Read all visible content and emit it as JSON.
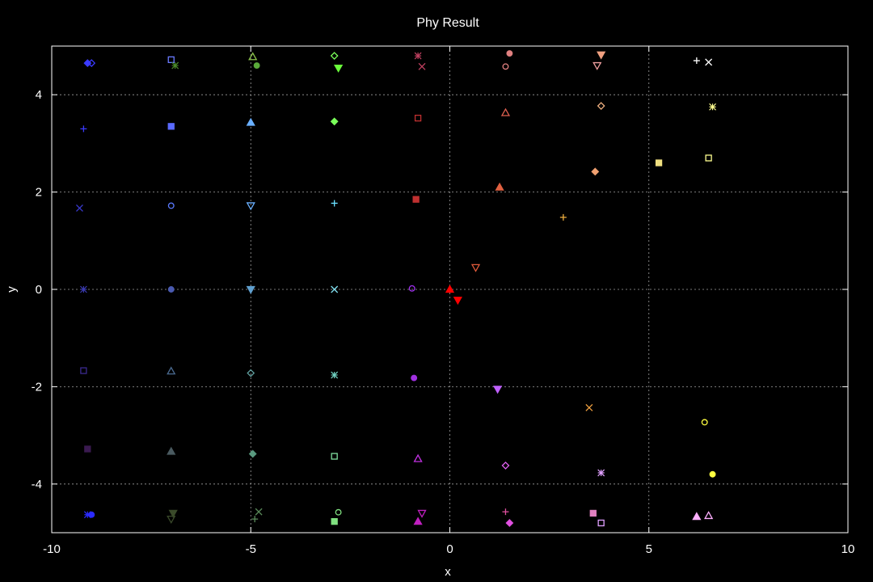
{
  "chart_data": {
    "type": "scatter",
    "title": "Phy Result",
    "xlabel": "x",
    "ylabel": "y",
    "xlim": [
      -10,
      10
    ],
    "ylim": [
      -5,
      5
    ],
    "xticks": [
      -10,
      -5,
      0,
      5,
      10
    ],
    "yticks": [
      -4,
      -2,
      0,
      2,
      4
    ],
    "grid": true,
    "background": "#000000",
    "axis_color": "#ffffff",
    "grid_color": "#a0a0a0",
    "points": [
      {
        "x": -9.0,
        "y": 4.65,
        "marker": "diamond-open",
        "color": "#3a3aff"
      },
      {
        "x": -9.1,
        "y": 4.65,
        "marker": "diamond-filled",
        "color": "#3a3aff"
      },
      {
        "x": -7.0,
        "y": 4.72,
        "marker": "square-open",
        "color": "#6a7aff"
      },
      {
        "x": -6.9,
        "y": 4.6,
        "marker": "asterisk",
        "color": "#4a8a2a"
      },
      {
        "x": -4.95,
        "y": 4.78,
        "marker": "triangle-open",
        "color": "#8ac04a"
      },
      {
        "x": -4.85,
        "y": 4.6,
        "marker": "circle-filled",
        "color": "#5aaa3a"
      },
      {
        "x": -2.9,
        "y": 4.8,
        "marker": "diamond-open",
        "color": "#7aff5a"
      },
      {
        "x": -2.8,
        "y": 4.55,
        "marker": "tri-down-filled",
        "color": "#6aff3a"
      },
      {
        "x": -0.8,
        "y": 4.8,
        "marker": "asterisk",
        "color": "#c04060"
      },
      {
        "x": -0.7,
        "y": 4.58,
        "marker": "cross",
        "color": "#c04060"
      },
      {
        "x": 1.5,
        "y": 4.85,
        "marker": "circle-filled",
        "color": "#e08080"
      },
      {
        "x": 1.4,
        "y": 4.58,
        "marker": "circle-open",
        "color": "#e08080"
      },
      {
        "x": 3.8,
        "y": 4.82,
        "marker": "tri-down-filled",
        "color": "#f0a080"
      },
      {
        "x": 3.7,
        "y": 4.6,
        "marker": "tri-down-open",
        "color": "#f0a0a0"
      },
      {
        "x": 6.2,
        "y": 4.7,
        "marker": "plus",
        "color": "#ffffff"
      },
      {
        "x": 6.5,
        "y": 4.67,
        "marker": "cross",
        "color": "#ffffff"
      },
      {
        "x": -9.2,
        "y": 3.3,
        "marker": "plus",
        "color": "#3a3aff"
      },
      {
        "x": -7.0,
        "y": 3.35,
        "marker": "square-filled",
        "color": "#5a6aff"
      },
      {
        "x": -5.0,
        "y": 3.43,
        "marker": "triangle-filled",
        "color": "#6ab0ff"
      },
      {
        "x": -2.9,
        "y": 3.45,
        "marker": "diamond-filled",
        "color": "#7aff5a"
      },
      {
        "x": -0.8,
        "y": 3.52,
        "marker": "square-open",
        "color": "#c03030"
      },
      {
        "x": 1.4,
        "y": 3.63,
        "marker": "triangle-open",
        "color": "#e06050"
      },
      {
        "x": 3.8,
        "y": 3.77,
        "marker": "diamond-open",
        "color": "#f0b080"
      },
      {
        "x": 6.6,
        "y": 3.75,
        "marker": "asterisk",
        "color": "#ffff90"
      },
      {
        "x": -9.3,
        "y": 1.67,
        "marker": "cross",
        "color": "#3a3ad0"
      },
      {
        "x": -7.0,
        "y": 1.72,
        "marker": "circle-open",
        "color": "#5a7aff"
      },
      {
        "x": -5.0,
        "y": 1.72,
        "marker": "tri-down-open",
        "color": "#6ab0ff"
      },
      {
        "x": -2.9,
        "y": 1.77,
        "marker": "plus",
        "color": "#6ae0ff"
      },
      {
        "x": -0.85,
        "y": 1.85,
        "marker": "square-filled",
        "color": "#c03030"
      },
      {
        "x": 1.25,
        "y": 2.1,
        "marker": "triangle-filled",
        "color": "#e06040"
      },
      {
        "x": 3.65,
        "y": 2.42,
        "marker": "diamond-filled",
        "color": "#f0a070"
      },
      {
        "x": 5.25,
        "y": 2.6,
        "marker": "square-filled",
        "color": "#f0e080"
      },
      {
        "x": 6.5,
        "y": 2.7,
        "marker": "square-open",
        "color": "#ffff90"
      },
      {
        "x": 2.85,
        "y": 1.48,
        "marker": "plus",
        "color": "#f0b040"
      },
      {
        "x": 0.65,
        "y": 0.45,
        "marker": "tri-down-open",
        "color": "#e05a3a"
      },
      {
        "x": -9.2,
        "y": 0.0,
        "marker": "asterisk",
        "color": "#3a3ab0"
      },
      {
        "x": -7.0,
        "y": 0.0,
        "marker": "circle-filled",
        "color": "#4a5ab0"
      },
      {
        "x": -5.0,
        "y": 0.0,
        "marker": "tri-down-filled",
        "color": "#60a0d0"
      },
      {
        "x": -2.9,
        "y": 0.0,
        "marker": "cross",
        "color": "#80e0f0"
      },
      {
        "x": -0.95,
        "y": 0.02,
        "marker": "circle-open",
        "color": "#a030f0"
      },
      {
        "x": 0.0,
        "y": 0.0,
        "marker": "triangle-filled",
        "color": "#ff0000"
      },
      {
        "x": 0.2,
        "y": -0.22,
        "marker": "tri-down-filled",
        "color": "#ff0000"
      },
      {
        "x": -9.2,
        "y": -1.67,
        "marker": "square-open",
        "color": "#3a2a90"
      },
      {
        "x": -7.0,
        "y": -1.68,
        "marker": "triangle-open",
        "color": "#4a6a90"
      },
      {
        "x": -5.0,
        "y": -1.72,
        "marker": "diamond-open",
        "color": "#60a0a0"
      },
      {
        "x": -2.9,
        "y": -1.76,
        "marker": "asterisk",
        "color": "#70d0c0"
      },
      {
        "x": -0.9,
        "y": -1.82,
        "marker": "circle-filled",
        "color": "#a030e0"
      },
      {
        "x": 1.2,
        "y": -2.05,
        "marker": "tri-down-filled",
        "color": "#c060ff"
      },
      {
        "x": 3.5,
        "y": -2.43,
        "marker": "cross",
        "color": "#f0a040"
      },
      {
        "x": 6.4,
        "y": -2.73,
        "marker": "circle-open",
        "color": "#ffff40"
      },
      {
        "x": -9.1,
        "y": -3.28,
        "marker": "square-filled",
        "color": "#3a1a50"
      },
      {
        "x": -7.0,
        "y": -3.33,
        "marker": "triangle-filled",
        "color": "#4a5a60"
      },
      {
        "x": -4.95,
        "y": -3.38,
        "marker": "diamond-filled",
        "color": "#5a9a80"
      },
      {
        "x": -2.9,
        "y": -3.43,
        "marker": "square-open",
        "color": "#80e0a0"
      },
      {
        "x": -0.8,
        "y": -3.48,
        "marker": "triangle-open",
        "color": "#c030e0"
      },
      {
        "x": 1.4,
        "y": -3.62,
        "marker": "diamond-open",
        "color": "#e060f0"
      },
      {
        "x": 3.8,
        "y": -3.77,
        "marker": "asterisk",
        "color": "#e0a0ff"
      },
      {
        "x": 6.6,
        "y": -3.8,
        "marker": "circle-filled",
        "color": "#ffff40"
      },
      {
        "x": -9.0,
        "y": -4.63,
        "marker": "circle-filled",
        "color": "#2a2aff"
      },
      {
        "x": -9.1,
        "y": -4.63,
        "marker": "asterisk",
        "color": "#2a2aff"
      },
      {
        "x": -6.95,
        "y": -4.6,
        "marker": "tri-down-filled",
        "color": "#3a4a2a"
      },
      {
        "x": -7.0,
        "y": -4.72,
        "marker": "tri-down-open",
        "color": "#3a4a2a"
      },
      {
        "x": -4.8,
        "y": -4.57,
        "marker": "cross",
        "color": "#5a8a5a"
      },
      {
        "x": -4.9,
        "y": -4.72,
        "marker": "plus",
        "color": "#5a8a5a"
      },
      {
        "x": -2.8,
        "y": -4.58,
        "marker": "circle-open",
        "color": "#80e080"
      },
      {
        "x": -2.9,
        "y": -4.77,
        "marker": "square-filled",
        "color": "#80e080"
      },
      {
        "x": -0.7,
        "y": -4.6,
        "marker": "tri-down-open",
        "color": "#c020c0"
      },
      {
        "x": -0.8,
        "y": -4.77,
        "marker": "triangle-filled",
        "color": "#c020c0"
      },
      {
        "x": 1.4,
        "y": -4.57,
        "marker": "plus",
        "color": "#e050a0"
      },
      {
        "x": 1.5,
        "y": -4.8,
        "marker": "diamond-filled",
        "color": "#e050e0"
      },
      {
        "x": 3.6,
        "y": -4.6,
        "marker": "square-filled",
        "color": "#e080c0"
      },
      {
        "x": 3.8,
        "y": -4.8,
        "marker": "square-open",
        "color": "#e0a0ff"
      },
      {
        "x": 6.2,
        "y": -4.67,
        "marker": "triangle-filled",
        "color": "#ffb0ff"
      },
      {
        "x": 6.5,
        "y": -4.65,
        "marker": "triangle-open",
        "color": "#ffb0ff"
      }
    ]
  }
}
